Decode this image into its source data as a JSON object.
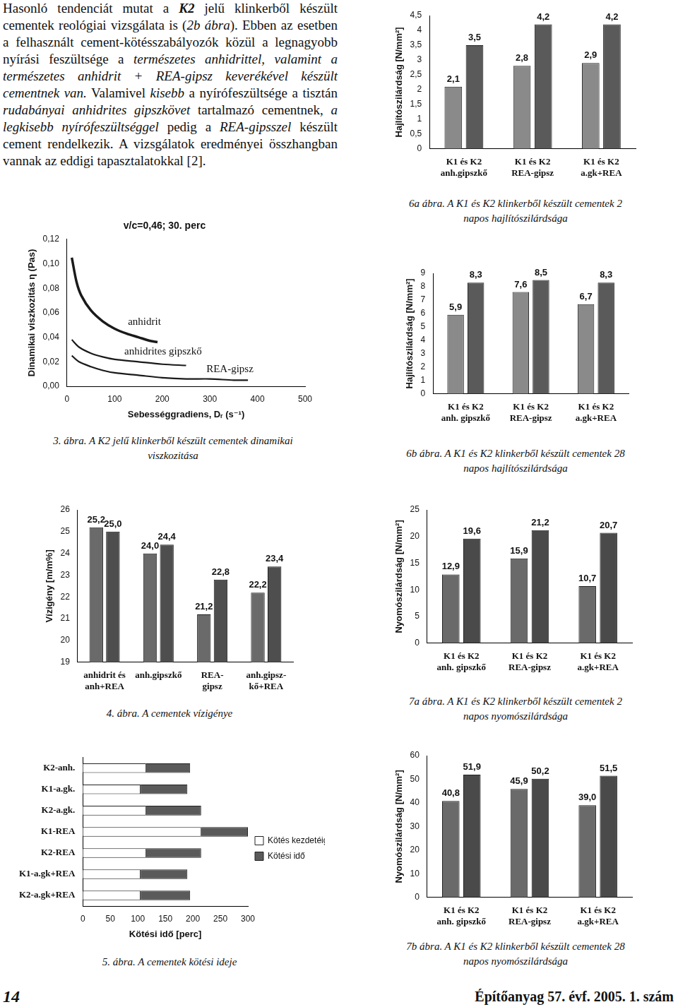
{
  "text": {
    "runs": [
      {
        "text": "Hasonló tendenciát mutat a ",
        "style": "normal"
      },
      {
        "text": "K2",
        "style": "bold italic"
      },
      {
        "text": " jelű klinkerből készült cementek reológiai vizsgálata is (",
        "style": "normal"
      },
      {
        "text": "2b ábra",
        "style": "italic"
      },
      {
        "text": "). Ebben az esetben a felhasznált cement-kötésszabályozók közül a legnagyobb nyírási feszültsége a ",
        "style": "normal"
      },
      {
        "text": "természetes anhidrittel, valamint a természetes anhidrit + REA-gipsz keverékével készült cementnek van.",
        "style": "italic"
      },
      {
        "text": " Valamivel ",
        "style": "normal"
      },
      {
        "text": "kisebb",
        "style": "italic"
      },
      {
        "text": " a nyírófeszültsége a tisztán ",
        "style": "normal"
      },
      {
        "text": "rudabányai anhidrites gipszkövet",
        "style": "italic"
      },
      {
        "text": " tartalmazó cementnek, ",
        "style": "normal"
      },
      {
        "text": "a legkisebb nyírófeszültséggel",
        "style": "italic"
      },
      {
        "text": " pedig a ",
        "style": "normal"
      },
      {
        "text": "REA-gipsszel",
        "style": "italic"
      },
      {
        "text": " készült cement rendelkezik. A vizsgálatok eredményei összhangban vannak az eddigi tapasztalatokkal [2].",
        "style": "normal"
      }
    ]
  },
  "footer": {
    "page_number": "14",
    "journal": "Építőanyag 57. évf. 2005. 1. szám"
  },
  "chart_data": [
    {
      "type": "line",
      "title": "v/c=0,46; 30. perc",
      "x_label": "Sebességgradiens, Dᵣ (s⁻¹)",
      "y_label": "Dinamikai viszkozitás η (Pas)",
      "xlim": [
        0,
        500
      ],
      "xticks": [
        0,
        100,
        200,
        300,
        400,
        500
      ],
      "ylim": [
        0,
        0.12
      ],
      "yticks": [
        {
          "value": 0,
          "label": "0,00"
        },
        {
          "value": 0.02,
          "label": "0,02"
        },
        {
          "value": 0.04,
          "label": "0,04"
        },
        {
          "value": 0.06,
          "label": "0,06"
        },
        {
          "value": 0.08,
          "label": "0,08"
        },
        {
          "value": 0.1,
          "label": "0,10"
        },
        {
          "value": 0.12,
          "label": "0,12"
        }
      ],
      "grid": false,
      "series": [
        {
          "name": "anhidrit",
          "color": "#1a1a1a",
          "x": [
            10,
            20,
            30,
            50,
            75,
            100,
            125,
            150,
            175,
            190
          ],
          "values": [
            0.105,
            0.085,
            0.074,
            0.062,
            0.053,
            0.047,
            0.043,
            0.04,
            0.037,
            0.036
          ]
        },
        {
          "name": "anhidrites gipszkő",
          "color": "#1a1a1a",
          "x": [
            10,
            25,
            50,
            75,
            100,
            150,
            200,
            250
          ],
          "values": [
            0.038,
            0.032,
            0.027,
            0.024,
            0.022,
            0.02,
            0.018,
            0.017
          ]
        },
        {
          "name": "REA-gipsz",
          "color": "#1a1a1a",
          "x": [
            10,
            25,
            50,
            75,
            100,
            150,
            200,
            250,
            300,
            350,
            380
          ],
          "values": [
            0.025,
            0.02,
            0.016,
            0.013,
            0.011,
            0.009,
            0.007,
            0.006,
            0.006,
            0.005,
            0.005
          ]
        }
      ],
      "caption": "3. ábra. A K2 jelű klinkerből készült cementek dinamikai viszkozitása"
    },
    {
      "type": "bar",
      "y_label": "Vízigény [m/m%]",
      "categories": [
        "anhidrit és\nanh+REA",
        "anh.gipszkő",
        "REA-\ngipsz",
        "anh.gipsz-\nkő+REA"
      ],
      "ylim": [
        19,
        26
      ],
      "yticks": [
        19,
        20,
        21,
        22,
        23,
        24,
        25,
        26
      ],
      "grid": false,
      "data_labels": true,
      "series": [
        {
          "color": "#6a6a6a",
          "values": [
            25.2,
            24.0,
            21.2,
            22.2
          ],
          "value_labels": [
            "25,2",
            "24,0",
            "21,2",
            "22,2"
          ]
        },
        {
          "color": "#4e4e4e",
          "values": [
            25.0,
            24.4,
            22.8,
            23.4
          ],
          "value_labels": [
            "25,0",
            "24,4",
            "22,8",
            "23,4"
          ]
        }
      ],
      "caption": "4. ábra. A cementek vízigénye"
    },
    {
      "type": "bar",
      "orientation": "horizontal",
      "stacked": true,
      "x_label": "Kötési idő [perc]",
      "categories": [
        "K2-anh.",
        "K1-a.gk.",
        "K2-a.gk.",
        "K1-REA",
        "K2-REA",
        "K1-a.gk+REA",
        "K2-a.gk+REA"
      ],
      "xlim": [
        0,
        300
      ],
      "xticks": [
        0,
        50,
        100,
        150,
        200,
        250,
        300
      ],
      "grid": false,
      "legend": "right",
      "series": [
        {
          "name": "Kötés kezdetéig eltelt idő",
          "color": "#ffffff",
          "values": [
            115,
            105,
            115,
            215,
            115,
            105,
            105
          ]
        },
        {
          "name": "Kötési idő",
          "color": "#5a5a5a",
          "values": [
            80,
            85,
            100,
            85,
            100,
            85,
            90
          ]
        }
      ],
      "caption": "5. ábra. A cementek kötési ideje"
    },
    {
      "type": "bar",
      "y_label": "Hajlítószilárdság [N/mm²]",
      "categories": [
        "K1 és K2\nanh.gipszkő",
        "K1 és K2\nREA-gipsz",
        "K1 és K2\na.gk+REA"
      ],
      "ylim": [
        0,
        4.5
      ],
      "yticks": [
        {
          "value": 0,
          "label": "0"
        },
        {
          "value": 0.5,
          "label": "0,5"
        },
        {
          "value": 1,
          "label": "1"
        },
        {
          "value": 1.5,
          "label": "1,5"
        },
        {
          "value": 2,
          "label": "2"
        },
        {
          "value": 2.5,
          "label": "2,5"
        },
        {
          "value": 3,
          "label": "3"
        },
        {
          "value": 3.5,
          "label": "3,5"
        },
        {
          "value": 4,
          "label": "4"
        },
        {
          "value": 4.5,
          "label": "4,5"
        }
      ],
      "grid": false,
      "data_labels": true,
      "series": [
        {
          "color": "#8a8a8a",
          "values": [
            2.1,
            2.8,
            2.9
          ],
          "value_labels": [
            "2,1",
            "2,8",
            "2,9"
          ]
        },
        {
          "color": "#5a5a5a",
          "values": [
            3.5,
            4.2,
            4.2
          ],
          "value_labels": [
            "3,5",
            "4,2",
            "4,2"
          ]
        }
      ],
      "caption": "6a ábra. A K1 és K2 klinkerből készült cementek 2 napos hajlítószilárdsága"
    },
    {
      "type": "bar",
      "y_label": "Hajlítószilárdság [N/mm²]",
      "categories": [
        "K1 és K2\nanh. gipszkő",
        "K1 és K2\nREA-gipsz",
        "K1 és K2\na.gk+REA"
      ],
      "ylim": [
        0,
        9
      ],
      "yticks": [
        0,
        1,
        2,
        3,
        4,
        5,
        6,
        7,
        8,
        9
      ],
      "grid": false,
      "data_labels": true,
      "series": [
        {
          "color": "#8a8a8a",
          "values": [
            5.9,
            7.6,
            6.7
          ],
          "value_labels": [
            "5,9",
            "7,6",
            "6,7"
          ]
        },
        {
          "color": "#5a5a5a",
          "values": [
            8.3,
            8.5,
            8.3
          ],
          "value_labels": [
            "8,3",
            "8,5",
            "8,3"
          ]
        }
      ],
      "caption": "6b ábra. A K1 és K2 klinkerből készült cementek 28 napos hajlítószilárdsága"
    },
    {
      "type": "bar",
      "y_label": "Nyomószilárdság [N/mm²]",
      "categories": [
        "K1 és K2\nanh. gipszkő",
        "K1 és K2\nREA-gipsz",
        "K1 és K2\na.gk+REA"
      ],
      "ylim": [
        0,
        25
      ],
      "yticks": [
        0,
        5,
        10,
        15,
        20,
        25
      ],
      "grid": false,
      "data_labels": true,
      "series": [
        {
          "color": "#6a6a6a",
          "values": [
            12.9,
            15.9,
            10.7
          ],
          "value_labels": [
            "12,9",
            "15,9",
            "10,7"
          ]
        },
        {
          "color": "#4a4a4a",
          "values": [
            19.6,
            21.2,
            20.7
          ],
          "value_labels": [
            "19,6",
            "21,2",
            "20,7"
          ]
        }
      ],
      "caption": "7a ábra. A K1 és K2 klinkerből készült cementek 2 napos nyomószilárdsága"
    },
    {
      "type": "bar",
      "y_label": "Nyomószilárdság [N/mm²]",
      "categories": [
        "K1 és K2\nanh. gipszkő",
        "K1 és K2\nREA-gipsz",
        "K1 és K2\na.gk+REA"
      ],
      "ylim": [
        0,
        60
      ],
      "yticks": [
        0,
        10,
        20,
        30,
        40,
        50,
        60
      ],
      "grid": false,
      "data_labels": true,
      "series": [
        {
          "color": "#6a6a6a",
          "values": [
            40.8,
            45.9,
            39.0
          ],
          "value_labels": [
            "40,8",
            "45,9",
            "39,0"
          ]
        },
        {
          "color": "#4a4a4a",
          "values": [
            51.9,
            50.2,
            51.5
          ],
          "value_labels": [
            "51,9",
            "50,2",
            "51,5"
          ]
        }
      ],
      "caption": "7b ábra. A K1 és K2 klinkerből készült cementek 28 napos nyomószilárdsága"
    }
  ]
}
